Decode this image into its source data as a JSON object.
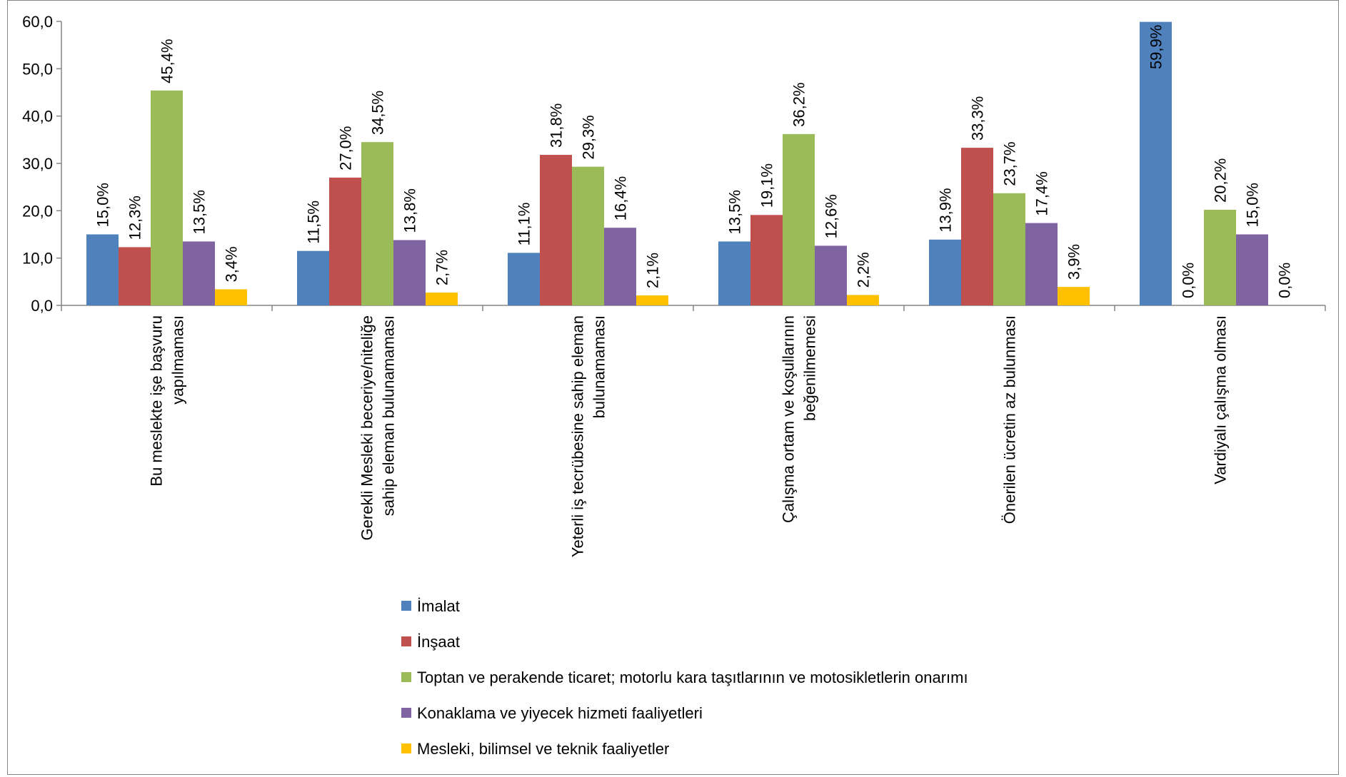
{
  "chart_data": {
    "type": "bar",
    "title": "",
    "xlabel": "",
    "ylabel": "",
    "ylim": [
      0,
      60
    ],
    "yticks": [
      "0,0",
      "10,0",
      "20,0",
      "30,0",
      "40,0",
      "50,0",
      "60,0"
    ],
    "categories": [
      [
        "Bu meslekte işe başvuru",
        "yapılmaması"
      ],
      [
        "Gerekli Mesleki beceriye/niteliğe",
        "sahip eleman bulunamaması"
      ],
      [
        "Yeterli iş tecrübesine sahip eleman",
        "bulunamaması"
      ],
      [
        "Çalışma ortam ve koşullarının",
        "beğenilmemesi"
      ],
      [
        "Önerilen ücretin az bulunması"
      ],
      [
        "Vardiyalı çalışma olması"
      ]
    ],
    "series": [
      {
        "name": "İmalat",
        "color": "#4F81BD",
        "values": [
          15.0,
          11.5,
          11.1,
          13.5,
          13.9,
          59.9
        ],
        "labels": [
          "15,0%",
          "11,5%",
          "11,1%",
          "13,5%",
          "13,9%",
          "59,9%"
        ]
      },
      {
        "name": "İnşaat",
        "color": "#C0504D",
        "values": [
          12.3,
          27.0,
          31.8,
          19.1,
          33.3,
          0.0
        ],
        "labels": [
          "12,3%",
          "27,0%",
          "31,8%",
          "19,1%",
          "33,3%",
          "0,0%"
        ]
      },
      {
        "name": "Toptan ve perakende ticaret; motorlu kara taşıtlarının ve motosikletlerin onarımı",
        "color": "#9BBB59",
        "values": [
          45.4,
          34.5,
          29.3,
          36.2,
          23.7,
          20.2
        ],
        "labels": [
          "45,4%",
          "34,5%",
          "29,3%",
          "36,2%",
          "23,7%",
          "20,2%"
        ]
      },
      {
        "name": "Konaklama ve yiyecek hizmeti faaliyetleri",
        "color": "#8064A2",
        "values": [
          13.5,
          13.8,
          16.4,
          12.6,
          17.4,
          15.0
        ],
        "labels": [
          "13,5%",
          "13,8%",
          "16,4%",
          "12,6%",
          "17,4%",
          "15,0%"
        ]
      },
      {
        "name": "Mesleki, bilimsel ve teknik faaliyetler",
        "color": "#FFC000",
        "values": [
          3.4,
          2.7,
          2.1,
          2.2,
          3.9,
          0.0
        ],
        "labels": [
          "3,4%",
          "2,7%",
          "2,1%",
          "2,2%",
          "3,9%",
          "0,0%"
        ]
      }
    ],
    "grid": false,
    "legend": "bottom"
  }
}
